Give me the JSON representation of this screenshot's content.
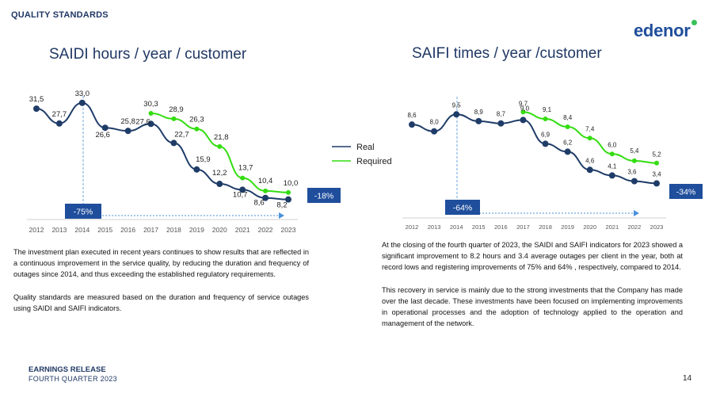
{
  "header": {
    "section": "QUALITY STANDARDS",
    "logo_text": "edenor",
    "brand_color": "#1f4e9c",
    "logo_dot_color": "#39c15a"
  },
  "legend": {
    "real_label": "Real",
    "required_label": "Required",
    "real_color": "#1f3c68",
    "required_color": "#33dd11"
  },
  "chart_data": [
    {
      "type": "line",
      "title": "SAIDI hours / year / customer",
      "categories": [
        "2012",
        "2013",
        "2014",
        "2015",
        "2016",
        "2017",
        "2018",
        "2019",
        "2020",
        "2021",
        "2022",
        "2023"
      ],
      "ylim": [
        0,
        36
      ],
      "series": [
        {
          "name": "Real",
          "x": [
            "2012",
            "2013",
            "2014",
            "2015",
            "2016",
            "2017",
            "2018",
            "2019",
            "2020",
            "2021",
            "2022",
            "2023"
          ],
          "values": [
            31.5,
            27.7,
            33.0,
            26.6,
            25.8,
            27.6,
            22.7,
            15.9,
            12.2,
            10.7,
            8.6,
            8.2
          ],
          "labels": [
            "31,5",
            "27,7",
            "33,0",
            "26,6",
            "25,8",
            "27,6",
            "22,7",
            "15,9",
            "12,2",
            "10,7",
            "8,6",
            "8,2"
          ]
        },
        {
          "name": "Required",
          "x": [
            "2017",
            "2018",
            "2019",
            "2020",
            "2021",
            "2022",
            "2023"
          ],
          "values": [
            30.3,
            28.9,
            26.3,
            21.8,
            13.7,
            10.4,
            10.0
          ],
          "labels": [
            "30,3",
            "28,9",
            "26,3",
            "21,8",
            "13,7",
            "10,4",
            "10,0"
          ]
        }
      ],
      "annotations": {
        "from_year_label": "-75%",
        "vs_required_label": "-18%"
      }
    },
    {
      "type": "line",
      "title": "SAIFI times / year /customer",
      "categories": [
        "2012",
        "2013",
        "2014",
        "2015",
        "2016",
        "2017",
        "2018",
        "2019",
        "2020",
        "2021",
        "2022",
        "2023"
      ],
      "ylim": [
        0,
        10.5
      ],
      "series": [
        {
          "name": "Real",
          "x": [
            "2012",
            "2013",
            "2014",
            "2015",
            "2016",
            "2017",
            "2018",
            "2019",
            "2020",
            "2021",
            "2022",
            "2023"
          ],
          "values": [
            8.6,
            8.0,
            9.5,
            8.9,
            8.7,
            9.0,
            6.9,
            6.2,
            4.6,
            4.1,
            3.6,
            3.4
          ],
          "labels": [
            "8,6",
            "8,0",
            "9,5",
            "8,9",
            "8,7",
            "9,0",
            "6,9",
            "6,2",
            "4,6",
            "4,1",
            "3,6",
            "3,4"
          ]
        },
        {
          "name": "Required",
          "x": [
            "2017",
            "2018",
            "2019",
            "2020",
            "2021",
            "2022",
            "2023"
          ],
          "values": [
            9.7,
            9.1,
            8.4,
            7.4,
            6.0,
            5.4,
            5.2
          ],
          "labels": [
            "9,7",
            "9,1",
            "8,4",
            "7,4",
            "6,0",
            "5,4",
            "5,2"
          ]
        }
      ],
      "annotations": {
        "from_year_label": "-64%",
        "vs_required_label": "-34%"
      }
    }
  ],
  "left_text": {
    "p1": "The investment plan executed in recent years continues to show results that are reflected in a continuous improvement in the service quality, by reducing the duration and frequency of outages since 2014, and thus exceeding the established regulatory requirements.",
    "p2": "Quality standards are measured based on the duration and frequency of service outages using SAIDI and SAIFI indicators."
  },
  "right_text": {
    "p1": "At the closing of the fourth quarter of 2023, the SAIDI and SAIFI indicators for 2023 showed a significant improvement to 8.2 hours and 3.4 average outages per client in the year, both at record lows and registering improvements of 75% and 64% , respectively, compared to 2014.",
    "p2": "This recovery in service is mainly due to the strong investments that the Company has made over the last decade. These investments have been focused on implementing improvements in operational processes and the adoption of technology applied to the operation and management of the network."
  },
  "footer": {
    "title": "EARNINGS RELEASE",
    "subtitle": "FOURTH QUARTER 2023",
    "page": "14"
  }
}
